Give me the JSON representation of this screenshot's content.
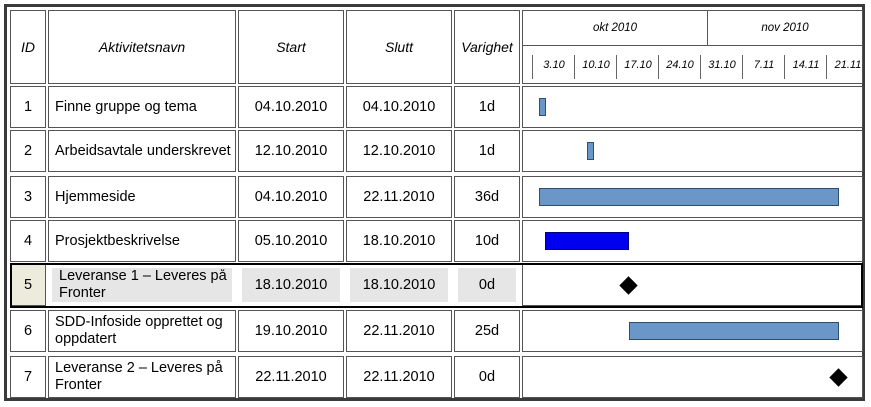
{
  "headers": {
    "id": "ID",
    "name": "Aktivitetsnavn",
    "start": "Start",
    "end": "Slutt",
    "duration": "Varighet"
  },
  "timeline": {
    "months": [
      "okt 2010",
      "nov 2010"
    ],
    "weeks": [
      "3.10",
      "10.10",
      "17.10",
      "24.10",
      "31.10",
      "7.11",
      "14.11",
      "21.11"
    ]
  },
  "tasks": [
    {
      "id": "1",
      "name": "Finne gruppe og tema",
      "start": "04.10.2010",
      "end": "04.10.2010",
      "duration": "1d"
    },
    {
      "id": "2",
      "name": "Arbeidsavtale underskrevet",
      "start": "12.10.2010",
      "end": "12.10.2010",
      "duration": "1d"
    },
    {
      "id": "3",
      "name": "Hjemmeside",
      "start": "04.10.2010",
      "end": "22.11.2010",
      "duration": "36d"
    },
    {
      "id": "4",
      "name": "Prosjektbeskrivelse",
      "start": "05.10.2010",
      "end": "18.10.2010",
      "duration": "10d"
    },
    {
      "id": "5",
      "name": "Leveranse 1 – Leveres på Fronter",
      "start": "18.10.2010",
      "end": "18.10.2010",
      "duration": "0d"
    },
    {
      "id": "6",
      "name": "SDD-Infoside opprettet og oppdatert",
      "start": "19.10.2010",
      "end": "22.11.2010",
      "duration": "25d"
    },
    {
      "id": "7",
      "name": "Leveranse 2 – Leveres på Fronter",
      "start": "22.11.2010",
      "end": "22.11.2010",
      "duration": "0d"
    }
  ],
  "colors": {
    "bar": "#6a97c8",
    "critical_bar": "#0000ee",
    "milestone": "#000000",
    "highlight_row": "#e6e6e6"
  }
}
